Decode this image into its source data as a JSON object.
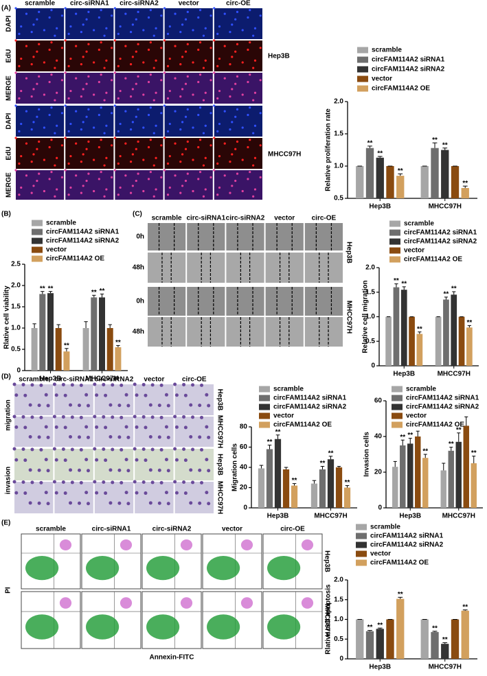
{
  "panels": {
    "A": {
      "letter": "(A)",
      "columns": [
        "scramble",
        "circ-siRNA1",
        "circ-siRNA2",
        "vector",
        "circ-OE"
      ],
      "rows": [
        "DAPI",
        "EdU",
        "MERGE",
        "DAPI",
        "EdU",
        "MERGE"
      ],
      "cells": [
        "Hep3B",
        "MHCC97H"
      ]
    },
    "B": {
      "letter": "(B)"
    },
    "C": {
      "letter": "(C)",
      "columns": [
        "scramble",
        "circ-siRNA1",
        "circ-siRNA2",
        "vector",
        "circ-OE"
      ],
      "rows": [
        "0h",
        "48h",
        "0h",
        "48h"
      ],
      "cells": [
        "Hep3B",
        "MHCC97H"
      ]
    },
    "D": {
      "letter": "(D)",
      "columns": [
        "scramble",
        "circ-siRNA1",
        "circ-siRNA2",
        "vector",
        "circ-OE"
      ],
      "rows": [
        "migration",
        "invasion"
      ],
      "cells": [
        "Hep3B",
        "MHCC97H",
        "Hep3B",
        "MHCC97H"
      ]
    },
    "E": {
      "letter": "(E)",
      "columns": [
        "scramble",
        "circ-siRNA1",
        "circ-siRNA2",
        "vector",
        "circ-OE"
      ],
      "ylabel": "PI",
      "xlabel": "Annexin-FITC",
      "cells": [
        "Hep3B",
        "MHCC97H"
      ]
    }
  },
  "chart_data": [
    {
      "type": "bar",
      "ylabel": "Relative  proliferation rate",
      "categories": [
        "Hep3B",
        "MHCC97H"
      ],
      "ylim": [
        0.5,
        2.0
      ],
      "yticks": [
        0.5,
        {
          "value": 1,
          "label": "1.0"
        },
        1.5,
        {
          "value": 2,
          "label": "2.0"
        }
      ],
      "series": [
        {
          "name": "scramble",
          "color": "#a6a6a6",
          "values": [
            1,
            1
          ],
          "errors": [
            0,
            0
          ],
          "labels": [
            null,
            null
          ]
        },
        {
          "name": "circFAM114A2 siRNA1",
          "color": "#6e6e6e",
          "values": [
            1.28,
            1.28
          ],
          "errors": [
            0.03,
            0.08
          ],
          "labels": [
            "**",
            "**"
          ]
        },
        {
          "name": "circFAM114A2 siRNA2",
          "color": "#333333",
          "values": [
            1.13,
            1.25
          ],
          "errors": [
            0.02,
            0.03
          ],
          "labels": [
            "**",
            "**"
          ]
        },
        {
          "name": "vector",
          "color": "#8a4b10",
          "values": [
            1,
            1
          ],
          "errors": [
            0,
            0
          ],
          "labels": [
            null,
            null
          ]
        },
        {
          "name": "circFAM114A2 OE",
          "color": "#d2a05e",
          "values": [
            0.85,
            0.66
          ],
          "errors": [
            0.03,
            0.03
          ],
          "labels": [
            "**",
            "**"
          ]
        }
      ]
    },
    {
      "type": "bar",
      "ylabel": "Rlative  cell viability",
      "categories": [
        "Hep3B",
        "MHCC97H"
      ],
      "ylim": [
        0,
        2.5
      ],
      "yticks": [
        0,
        0.5,
        {
          "value": 1,
          "label": "1.0"
        },
        1.5,
        {
          "value": 2,
          "label": "2.0"
        },
        2.5
      ],
      "series": [
        {
          "name": "scramble",
          "color": "#a6a6a6",
          "values": [
            1,
            1
          ],
          "errors": [
            0.1,
            0.15
          ],
          "labels": [
            null,
            null
          ]
        },
        {
          "name": "circFAM114A2 siRNA1",
          "color": "#6e6e6e",
          "values": [
            1.8,
            1.72
          ],
          "errors": [
            0.06,
            0.05
          ],
          "labels": [
            "**",
            "**"
          ]
        },
        {
          "name": "circFAM114A2 siRNA2",
          "color": "#333333",
          "values": [
            1.82,
            1.72
          ],
          "errors": [
            0.04,
            0.08
          ],
          "labels": [
            "**",
            "**"
          ]
        },
        {
          "name": "vector",
          "color": "#8a4b10",
          "values": [
            1,
            1
          ],
          "errors": [
            0.08,
            0.08
          ],
          "labels": [
            null,
            null
          ]
        },
        {
          "name": "circFAM114A2 OE",
          "color": "#d2a05e",
          "values": [
            0.45,
            0.55
          ],
          "errors": [
            0.07,
            0.04
          ],
          "labels": [
            "**",
            "**"
          ]
        }
      ]
    },
    {
      "type": "bar",
      "ylabel": "Relative cell migration",
      "categories": [
        "Hep3B",
        "MHCC97H"
      ],
      "ylim": [
        0,
        2.0
      ],
      "yticks": [
        0,
        0.5,
        {
          "value": 1,
          "label": "1.0"
        },
        1.5,
        {
          "value": 2,
          "label": "2.0"
        }
      ],
      "series": [
        {
          "name": "scramble",
          "color": "#a6a6a6",
          "values": [
            1,
            1
          ],
          "errors": [
            0,
            0
          ],
          "labels": [
            null,
            null
          ]
        },
        {
          "name": "circFAM114A2 siRNA1",
          "color": "#6e6e6e",
          "values": [
            1.6,
            1.35
          ],
          "errors": [
            0.07,
            0.05
          ],
          "labels": [
            "**",
            "**"
          ]
        },
        {
          "name": "circFAM114A2 siRNA2",
          "color": "#333333",
          "values": [
            1.55,
            1.45
          ],
          "errors": [
            0.06,
            0.06
          ],
          "labels": [
            "**",
            "**"
          ]
        },
        {
          "name": "vector",
          "color": "#8a4b10",
          "values": [
            1,
            1
          ],
          "errors": [
            0,
            0
          ],
          "labels": [
            null,
            null
          ]
        },
        {
          "name": "circFAM114A2 OE",
          "color": "#d2a05e",
          "values": [
            0.65,
            0.78
          ],
          "errors": [
            0.04,
            0.04
          ],
          "labels": [
            "**",
            "**"
          ]
        }
      ]
    },
    {
      "type": "bar",
      "ylabel": "Migration cells",
      "categories": [
        "Hep3B",
        "MHCC97H"
      ],
      "ylim": [
        0,
        80
      ],
      "yticks": [
        0,
        20,
        40,
        60,
        80
      ],
      "series": [
        {
          "name": "scramble",
          "color": "#a6a6a6",
          "values": [
            39,
            24
          ],
          "errors": [
            3,
            3
          ],
          "labels": [
            null,
            null
          ]
        },
        {
          "name": "circFAM114A2 siRNA1",
          "color": "#6e6e6e",
          "values": [
            58,
            38
          ],
          "errors": [
            4,
            3
          ],
          "labels": [
            "**",
            "**"
          ]
        },
        {
          "name": "circFAM114A2 siRNA2",
          "color": "#333333",
          "values": [
            68,
            48
          ],
          "errors": [
            4,
            3
          ],
          "labels": [
            "**",
            "**"
          ]
        },
        {
          "name": "vector",
          "color": "#8a4b10",
          "values": [
            38,
            40
          ],
          "errors": [
            2,
            1
          ],
          "labels": [
            null,
            null
          ]
        },
        {
          "name": "circFAM114A2 OE",
          "color": "#d2a05e",
          "values": [
            22,
            20
          ],
          "errors": [
            2,
            2
          ],
          "labels": [
            "**",
            "**"
          ]
        }
      ]
    },
    {
      "type": "bar",
      "ylabel": "Invasion cells",
      "categories": [
        "Hep3B",
        "MHCC97H"
      ],
      "ylim": [
        0,
        60
      ],
      "yticks": [
        0,
        20,
        40,
        60
      ],
      "series": [
        {
          "name": "scramble",
          "color": "#a6a6a6",
          "values": [
            23,
            21
          ],
          "errors": [
            3,
            4
          ],
          "labels": [
            null,
            null
          ]
        },
        {
          "name": "circFAM114A2 siRNA1",
          "color": "#6e6e6e",
          "values": [
            35,
            32
          ],
          "errors": [
            3,
            2
          ],
          "labels": [
            "**",
            "**"
          ]
        },
        {
          "name": "circFAM114A2 siRNA2",
          "color": "#333333",
          "values": [
            36,
            37
          ],
          "errors": [
            3,
            5
          ],
          "labels": [
            "**",
            "**"
          ]
        },
        {
          "name": "vector",
          "color": "#8a4b10",
          "values": [
            40,
            46
          ],
          "errors": [
            3,
            5
          ],
          "labels": [
            null,
            null
          ]
        },
        {
          "name": "circFAM114A2 OE",
          "color": "#d2a05e",
          "values": [
            28,
            25
          ],
          "errors": [
            2,
            4
          ],
          "labels": [
            "**",
            "**"
          ]
        }
      ]
    },
    {
      "type": "bar",
      "ylabel": "Rlative cell apoptosis",
      "categories": [
        "Hep3B",
        "MHCC97H"
      ],
      "ylim": [
        0,
        2.0
      ],
      "yticks": [
        0,
        0.5,
        {
          "value": 1,
          "label": "1.0"
        },
        1.5,
        {
          "value": 2,
          "label": "2.0"
        }
      ],
      "series": [
        {
          "name": "scramble",
          "color": "#a6a6a6",
          "values": [
            1,
            1
          ],
          "errors": [
            0,
            0
          ],
          "labels": [
            null,
            null
          ]
        },
        {
          "name": "circFAM114A2 siRNA1",
          "color": "#6e6e6e",
          "values": [
            0.7,
            0.68
          ],
          "errors": [
            0.02,
            0.02
          ],
          "labels": [
            "**",
            "**"
          ]
        },
        {
          "name": "circFAM114A2 siRNA2",
          "color": "#333333",
          "values": [
            0.76,
            0.38
          ],
          "errors": [
            0.02,
            0.03
          ],
          "labels": [
            "**",
            "**"
          ]
        },
        {
          "name": "vector",
          "color": "#8a4b10",
          "values": [
            1,
            1
          ],
          "errors": [
            0,
            0
          ],
          "labels": [
            null,
            null
          ]
        },
        {
          "name": "circFAM114A2 OE",
          "color": "#d2a05e",
          "values": [
            1.52,
            1.22
          ],
          "errors": [
            0.04,
            0.02
          ],
          "labels": [
            "**",
            "**"
          ]
        }
      ]
    }
  ]
}
